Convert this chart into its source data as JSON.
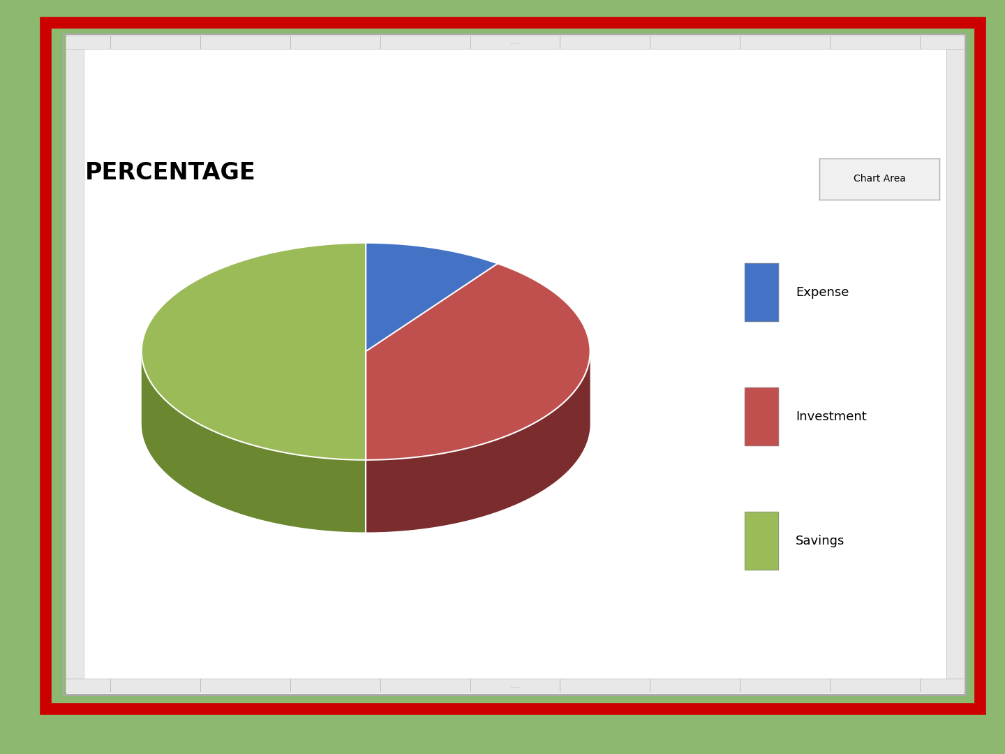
{
  "title": "PERCENTAGE",
  "labels": [
    "Expense",
    "Investment",
    "Savings"
  ],
  "values": [
    10,
    40,
    50
  ],
  "colors_top": [
    "#4472C4",
    "#C0504D",
    "#9BBB59"
  ],
  "colors_side": [
    "#2E4D8A",
    "#7B2D2D",
    "#6B8830"
  ],
  "background_outer": "#8DB870",
  "background_inner": "#FFFFFF",
  "border_color_outer": "#CC0000",
  "legend_labels": [
    "Expense",
    "Investment",
    "Savings"
  ],
  "legend_colors": [
    "#4472C4",
    "#C0504D",
    "#9BBB59"
  ],
  "chart_area_label": "Chart Area",
  "title_fontsize": 24,
  "legend_fontsize": 13,
  "start_angle": 90
}
